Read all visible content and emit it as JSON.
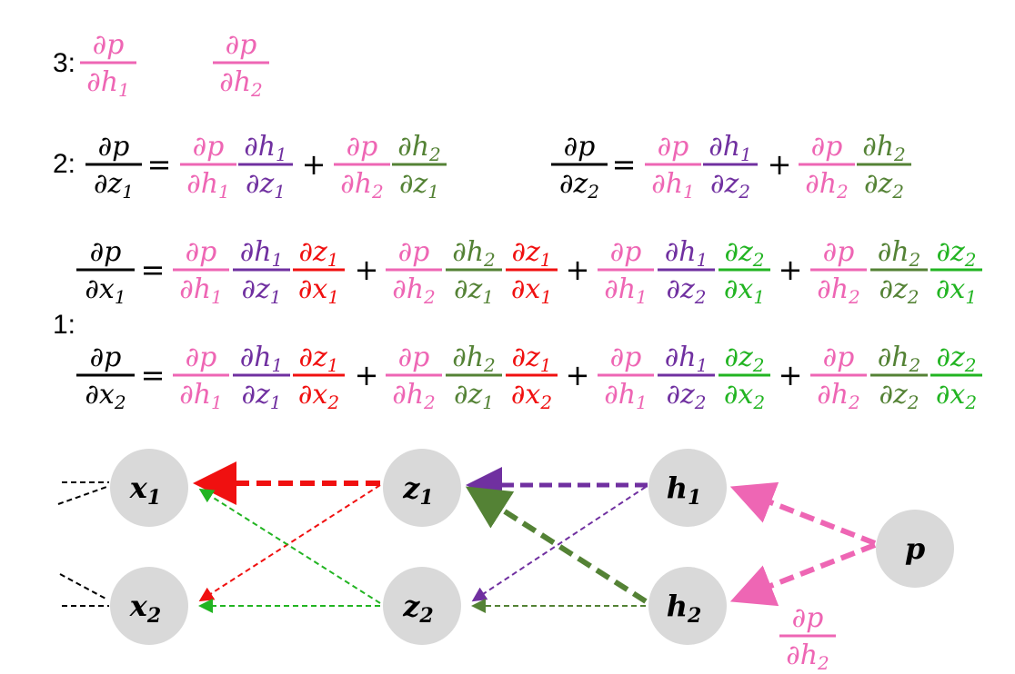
{
  "colors": {
    "pink": "#ee66b4",
    "purple": "#7030a0",
    "red": "#f01010",
    "darkgreen": "#548235",
    "green": "#22b422",
    "black": "#000000",
    "node": "#d9d9d9"
  },
  "steps": {
    "step3": "3:",
    "step2": "2:",
    "step1": "1:"
  },
  "symbols": {
    "d": "∂",
    "p": "p",
    "h": "h",
    "z": "z",
    "x": "x",
    "one": "1",
    "two": "2",
    "eq": "=",
    "plus": "+"
  },
  "nodes": {
    "x1": {
      "main": "x",
      "sub": "1"
    },
    "x2": {
      "main": "x",
      "sub": "2"
    },
    "z1": {
      "main": "z",
      "sub": "1"
    },
    "z2": {
      "main": "z",
      "sub": "2"
    },
    "h1": {
      "main": "h",
      "sub": "1"
    },
    "h2": {
      "main": "h",
      "sub": "2"
    },
    "p": {
      "main": "p",
      "sub": ""
    }
  },
  "edge_label": {
    "d": "∂",
    "num": "p",
    "den": "h",
    "sub": "2"
  }
}
